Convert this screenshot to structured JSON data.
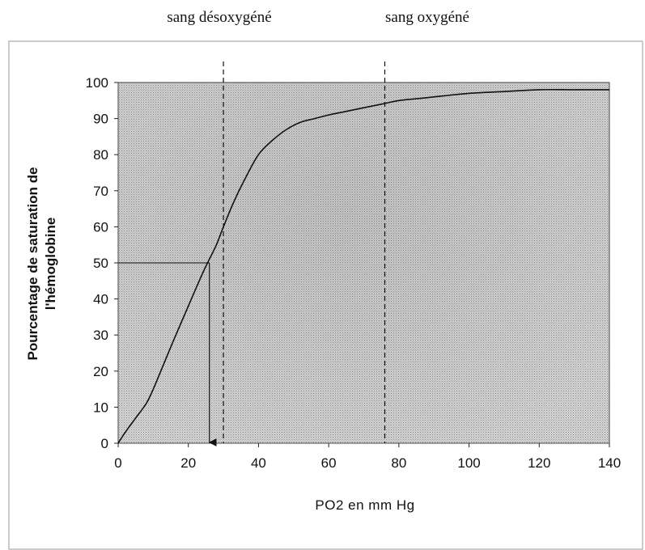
{
  "chart_data": {
    "type": "line",
    "annotations_top": [
      "sang désoxygéné",
      "sang oxygéné"
    ],
    "xlabel": "PO2 en mm Hg",
    "ylabel_lines": [
      "Pourcentage de saturation de",
      "l'hémoglobine"
    ],
    "xlim": [
      0,
      140
    ],
    "ylim": [
      0,
      100
    ],
    "x_ticks": [
      0,
      20,
      40,
      60,
      80,
      100,
      120,
      140
    ],
    "y_ticks": [
      0,
      10,
      20,
      30,
      40,
      50,
      60,
      70,
      80,
      90,
      100
    ],
    "grid": false,
    "legend": "none",
    "series": [
      {
        "x": [
          0,
          2,
          5,
          8,
          10,
          13,
          16,
          20,
          24,
          26,
          28,
          30,
          33,
          36,
          40,
          44,
          48,
          52,
          56,
          60,
          65,
          70,
          75,
          80,
          85,
          90,
          100,
          110,
          120,
          130,
          140
        ],
        "y": [
          0,
          3,
          7,
          11,
          15,
          22,
          29,
          38,
          47,
          51,
          55,
          60,
          67,
          73,
          80,
          84,
          87,
          89,
          90,
          91,
          92,
          93,
          94,
          95,
          95.5,
          96,
          97,
          97.5,
          98,
          98,
          98
        ]
      }
    ],
    "reference_lines": {
      "vertical_dashed_x": [
        30,
        76
      ],
      "p50_point": {
        "x": 26,
        "y": 50
      }
    },
    "colors": {
      "plot_background": "#c8c8c8",
      "curve": "#111111",
      "frame": "#888888"
    }
  }
}
